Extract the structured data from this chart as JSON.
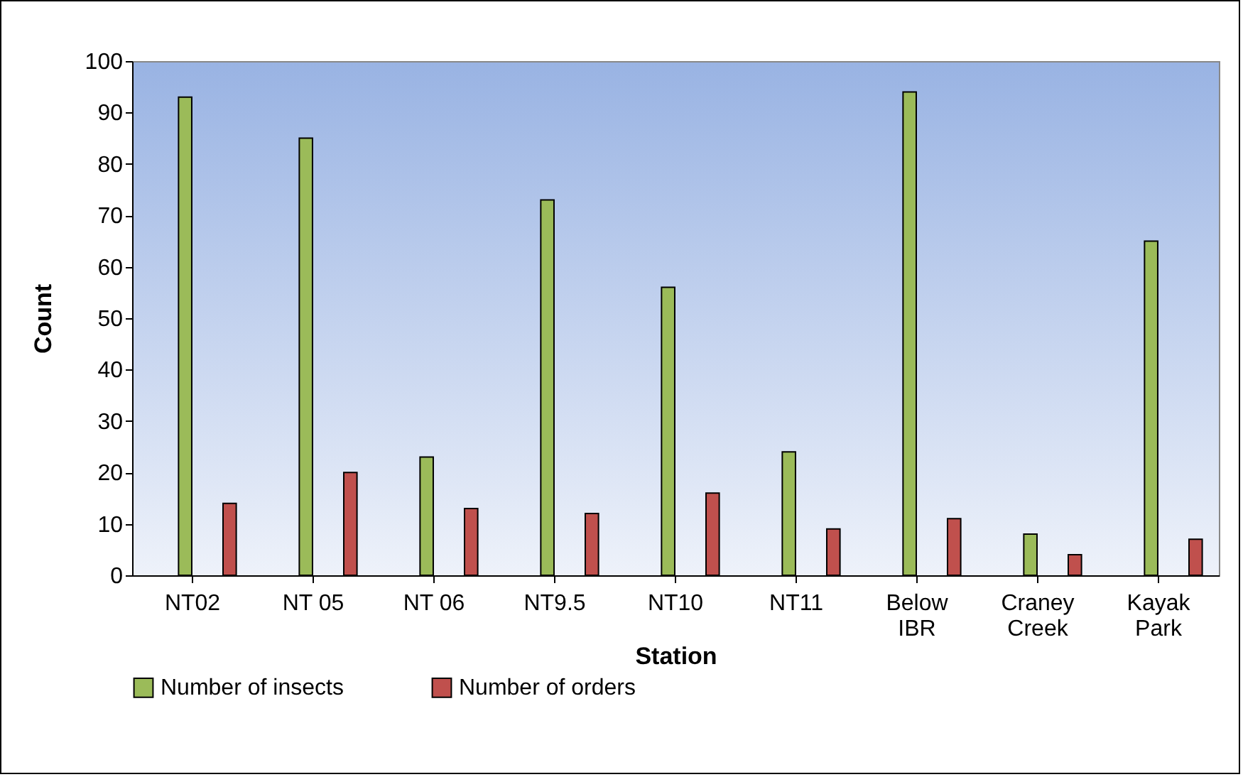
{
  "chart_data": {
    "type": "bar",
    "xlabel": "Station",
    "ylabel": "Count",
    "categories": [
      "NT02",
      "NT 05",
      "NT 06",
      "NT9.5",
      "NT10",
      "NT11",
      "Below IBR",
      "Craney Creek",
      "Kayak Park"
    ],
    "series": [
      {
        "name": "Number of insects",
        "color": "#9bbb59",
        "values": [
          93,
          85,
          23,
          73,
          56,
          24,
          94,
          8,
          65
        ]
      },
      {
        "name": "Number of orders",
        "color": "#c0504d",
        "values": [
          14,
          20,
          13,
          12,
          16,
          9,
          11,
          4,
          7
        ]
      }
    ],
    "ylim": [
      0,
      100
    ],
    "yticks": [
      0,
      10,
      20,
      30,
      40,
      50,
      60,
      70,
      80,
      90,
      100
    ],
    "grid": false,
    "legend": "bottom"
  }
}
